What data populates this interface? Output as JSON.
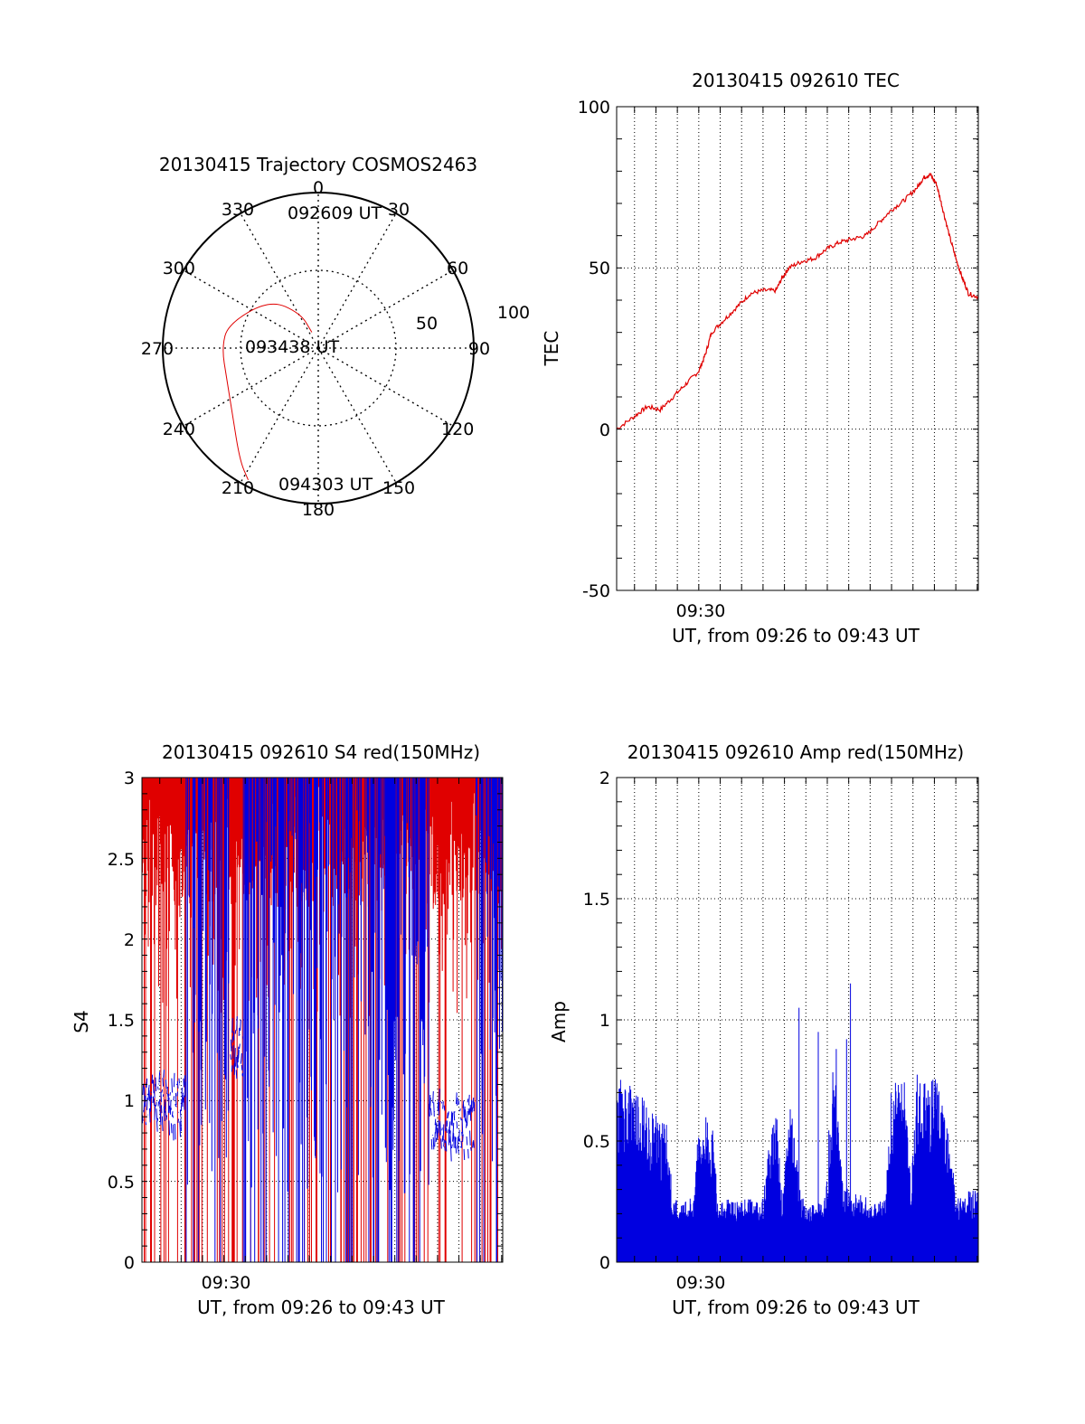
{
  "chart_data": [
    {
      "type": "polar",
      "title": "20130415 Trajectory COSMOS2463",
      "azimuth_ticks": [
        "0",
        "30",
        "60",
        "90",
        "120",
        "150",
        "180",
        "210",
        "240",
        "270",
        "300",
        "330"
      ],
      "radial_tick_labels": [
        "50",
        "100"
      ],
      "ring_values": [
        50
      ],
      "series": [
        {
          "color": "#e00000",
          "points": [
            [
              338,
              11
            ],
            [
              333,
              25
            ],
            [
              315,
              44
            ],
            [
              285,
              60
            ],
            [
              270,
              62
            ],
            [
              252,
              62
            ],
            [
              232,
              70
            ],
            [
              215,
              88
            ],
            [
              208,
              96
            ]
          ]
        }
      ],
      "annotations": [
        {
          "text": "092609 UT",
          "azimuth": 9,
          "r": 88
        },
        {
          "text": "093438 UT",
          "azimuth": 290,
          "r": 9
        },
        {
          "text": "094303 UT",
          "azimuth": 195,
          "r": 88
        }
      ]
    },
    {
      "type": "line",
      "title": "20130415 092610 TEC",
      "xlabel": "UT, from 09:26 to 09:43 UT",
      "ylabel": "TEC",
      "xlim": [
        9.4361,
        9.7175
      ],
      "ylim": [
        -50,
        100
      ],
      "yticks": [
        "-50",
        "0",
        "50",
        "100"
      ],
      "xticks": [
        {
          "value": 9.5,
          "label": "09:30"
        }
      ],
      "grid": true,
      "series": [
        {
          "color": "#e00000",
          "points": [
            [
              9.4361,
              0
            ],
            [
              9.45,
              4
            ],
            [
              9.46,
              7
            ],
            [
              9.47,
              6
            ],
            [
              9.48,
              10
            ],
            [
              9.49,
              14
            ],
            [
              9.5,
              18
            ],
            [
              9.505,
              23
            ],
            [
              9.51,
              30
            ],
            [
              9.52,
              34
            ],
            [
              9.53,
              38
            ],
            [
              9.54,
              42
            ],
            [
              9.55,
              43
            ],
            [
              9.56,
              43
            ],
            [
              9.565,
              47
            ],
            [
              9.57,
              50
            ],
            [
              9.58,
              52
            ],
            [
              9.59,
              53
            ],
            [
              9.6,
              56
            ],
            [
              9.61,
              58
            ],
            [
              9.62,
              59
            ],
            [
              9.63,
              60
            ],
            [
              9.64,
              64
            ],
            [
              9.65,
              68
            ],
            [
              9.66,
              71
            ],
            [
              9.67,
              75
            ],
            [
              9.675,
              78
            ],
            [
              9.68,
              79
            ],
            [
              9.685,
              76
            ],
            [
              9.69,
              68
            ],
            [
              9.695,
              60
            ],
            [
              9.7,
              53
            ],
            [
              9.705,
              47
            ],
            [
              9.71,
              42
            ],
            [
              9.7175,
              41
            ]
          ]
        }
      ]
    },
    {
      "type": "line",
      "title": "20130415 092610 S4 red(150MHz)",
      "xlabel": "UT, from 09:26 to 09:43 UT",
      "ylabel": "S4",
      "xlim": [
        9.4361,
        9.7175
      ],
      "ylim": [
        0,
        3
      ],
      "yticks": [
        "0",
        "0.5",
        "1",
        "1.5",
        "2",
        "2.5",
        "3"
      ],
      "xticks": [
        {
          "value": 9.5,
          "label": "09:30"
        }
      ],
      "grid": true,
      "series": [
        {
          "color": "#e00000",
          "values_range": [
            0,
            3
          ]
        },
        {
          "color": "#0000e0",
          "values_range": [
            0,
            3
          ],
          "baseline_segments": [
            [
              9.4361,
              9.47,
              1.0
            ],
            [
              9.505,
              9.515,
              1.3
            ],
            [
              9.66,
              9.695,
              0.85
            ]
          ]
        }
      ]
    },
    {
      "type": "line",
      "title": "20130415 092610 Amp red(150MHz)",
      "xlabel": "UT, from 09:26 to 09:43 UT",
      "ylabel": "Amp",
      "xlim": [
        9.4361,
        9.7175
      ],
      "ylim": [
        0,
        2
      ],
      "yticks": [
        "0",
        "0.5",
        "1",
        "1.5",
        "2"
      ],
      "xticks": [
        {
          "value": 9.5,
          "label": "09:30"
        }
      ],
      "grid": true,
      "series": [
        {
          "color": "#0000e0",
          "envelope": [
            [
              9.4361,
              0.75
            ],
            [
              9.44,
              0.72
            ],
            [
              9.46,
              0.65
            ],
            [
              9.475,
              0.55
            ],
            [
              9.48,
              0.25
            ],
            [
              9.495,
              0.25
            ],
            [
              9.5,
              0.55
            ],
            [
              9.51,
              0.6
            ],
            [
              9.515,
              0.25
            ],
            [
              9.55,
              0.25
            ],
            [
              9.56,
              0.7
            ],
            [
              9.565,
              0.25
            ],
            [
              9.572,
              0.7
            ],
            [
              9.578,
              0.3
            ],
            [
              9.585,
              0.22
            ],
            [
              9.598,
              0.25
            ],
            [
              9.605,
              0.85
            ],
            [
              9.612,
              0.3
            ],
            [
              9.635,
              0.25
            ],
            [
              9.645,
              0.25
            ],
            [
              9.65,
              0.7
            ],
            [
              9.66,
              0.72
            ],
            [
              9.665,
              0.3
            ],
            [
              9.67,
              0.75
            ],
            [
              9.685,
              0.72
            ],
            [
              9.695,
              0.55
            ],
            [
              9.7,
              0.25
            ],
            [
              9.7175,
              0.3
            ]
          ],
          "floor": 0.15
        }
      ]
    }
  ]
}
